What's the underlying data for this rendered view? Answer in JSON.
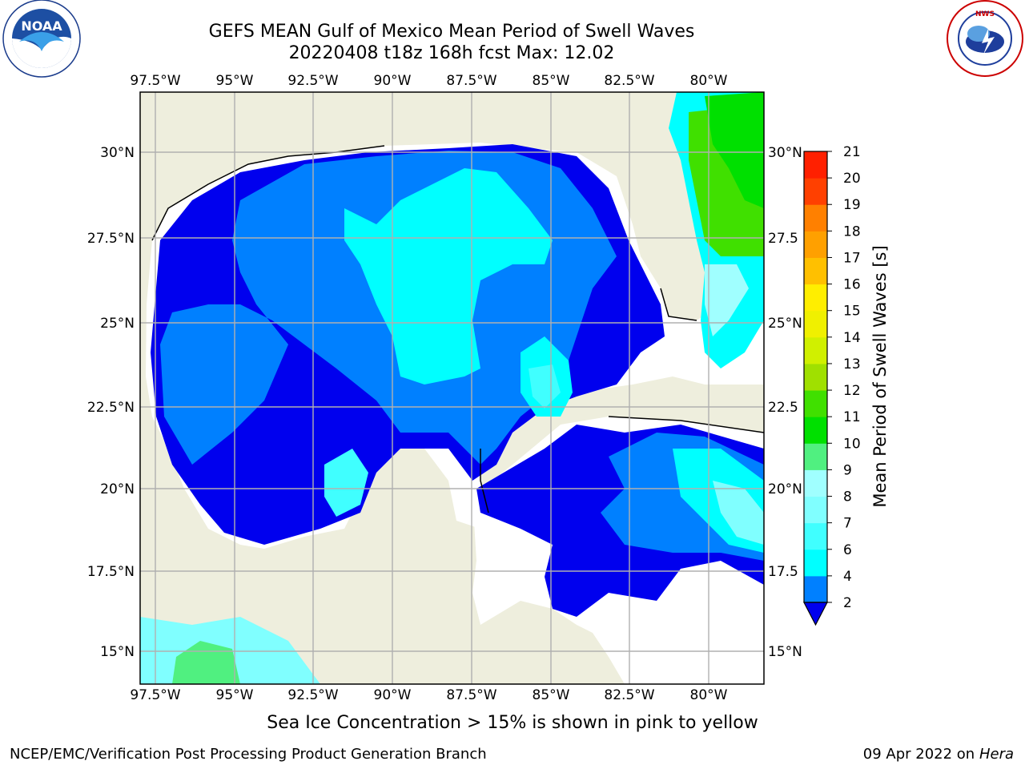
{
  "header": {
    "title_line1": "GEFS MEAN Gulf of Mexico Mean Period of Swell Waves",
    "title_line2": "20220408 t18z 168h fcst   Max: 12.02"
  },
  "logos": {
    "left": "noara-logo",
    "right": "nws-logo",
    "left_text": "NOAA",
    "left_ring": "NATIONAL OCEANIC AND ATMOSPHERIC ADMINISTRATION · U.S. DEPARTMENT OF COMMERCE",
    "right_ring": "NATIONAL WEATHER SERVICE"
  },
  "map": {
    "lon_labels": [
      "97.5°W",
      "95°W",
      "92.5°W",
      "90°W",
      "87.5°W",
      "85°W",
      "82.5°W",
      "80°W"
    ],
    "lat_labels_left": [
      "30°N",
      "27.5°N",
      "25°N",
      "22.5°N",
      "20°N",
      "17.5°N",
      "15°N"
    ],
    "lat_labels_right": [
      "30°N",
      "27.5",
      "25°N",
      "22.5",
      "20°N",
      "17.5",
      "15°N"
    ],
    "land_color": "#eeeedd",
    "grid_color": "#b0b0b0"
  },
  "colorbar": {
    "label": "Mean Period of Swell Waves [s]",
    "ticks": [
      "2",
      "4",
      "6",
      "7",
      "8",
      "9",
      "10",
      "11",
      "12",
      "13",
      "14",
      "15",
      "16",
      "17",
      "18",
      "19",
      "20",
      "21"
    ],
    "colors": [
      "#0000ee",
      "#0080ff",
      "#00ffff",
      "#40ffff",
      "#80ffff",
      "#a0ffff",
      "#50f080",
      "#00e000",
      "#40e000",
      "#a0e000",
      "#d0f000",
      "#f0f000",
      "#ffee00",
      "#ffc000",
      "#ffa000",
      "#ff8000",
      "#ff4000",
      "#ff2000",
      "#ff0000"
    ]
  },
  "note": "Sea Ice Concentration > 15% is shown in pink to yellow",
  "footer": {
    "left": "NCEP/EMC/Verification Post Processing Product Generation Branch",
    "right_date": "09 Apr 2022 on ",
    "right_host": "Hera"
  }
}
